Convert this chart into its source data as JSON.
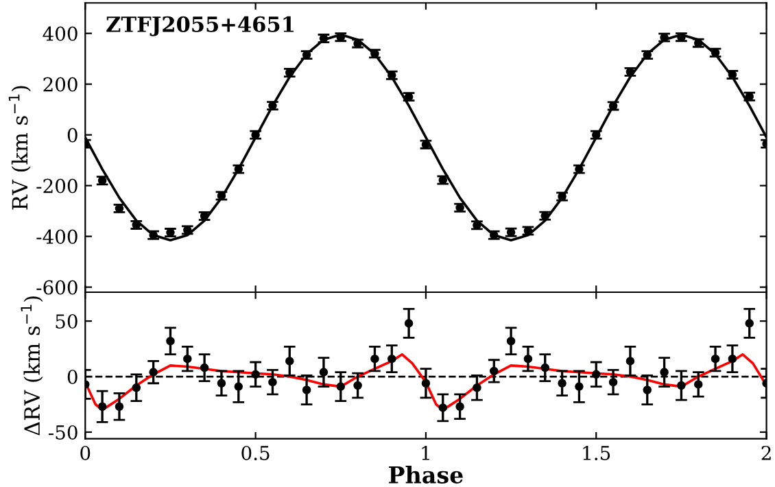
{
  "chart_data": [
    {
      "type": "scatter",
      "ylabel": "RV (km s$^{−1}$)",
      "annotations": [
        "ZTFJ2055+4651"
      ],
      "xlim": [
        0,
        2
      ],
      "xticks": [
        {
          "value": 0,
          "label": null
        },
        {
          "value": 0.5,
          "label": null
        },
        {
          "value": 1,
          "label": null
        },
        {
          "value": 1.5,
          "label": null
        },
        {
          "value": 2,
          "label": null
        }
      ],
      "ylim": [
        -620,
        520
      ],
      "yticks": [
        -600,
        -400,
        -200,
        0,
        200,
        400
      ],
      "tick_labels": "y",
      "grid": false,
      "legend": false,
      "series": [
        {
          "type": "line",
          "color": "#000000",
          "marker": "none",
          "line_style": "solid",
          "x": [
            0,
            0.05,
            0.1,
            0.15,
            0.2,
            0.25,
            0.3,
            0.35,
            0.4,
            0.45,
            0.5,
            0.55,
            0.6,
            0.65,
            0.7,
            0.75,
            0.8,
            0.85,
            0.9,
            0.95,
            1,
            1.05,
            1.1,
            1.15,
            1.2,
            1.25,
            1.3,
            1.35,
            1.4,
            1.45,
            1.5,
            1.55,
            1.6,
            1.65,
            1.7,
            1.75,
            1.8,
            1.85,
            1.9,
            1.95,
            2
          ],
          "values": [
            -10,
            -135,
            -248,
            -338,
            -395,
            -415,
            -395,
            -338,
            -248,
            -135,
            -10,
            115,
            228,
            318,
            375,
            395,
            375,
            318,
            228,
            115,
            -10,
            -135,
            -248,
            -338,
            -395,
            -415,
            -395,
            -338,
            -248,
            -135,
            -10,
            115,
            228,
            318,
            375,
            395,
            375,
            318,
            228,
            115,
            -10
          ]
        },
        {
          "color": "#000000",
          "marker": "circle",
          "x": [
            0,
            0.05,
            0.1,
            0.15,
            0.2,
            0.25,
            0.3,
            0.35,
            0.4,
            0.45,
            0.5,
            0.55,
            0.6,
            0.65,
            0.7,
            0.75,
            0.8,
            0.85,
            0.9,
            0.95,
            1,
            1.05,
            1.1,
            1.15,
            1.2,
            1.25,
            1.3,
            1.35,
            1.4,
            1.45,
            1.5,
            1.55,
            1.6,
            1.65,
            1.7,
            1.75,
            1.8,
            1.85,
            1.9,
            1.95,
            2
          ],
          "values": [
            -35,
            -180,
            -290,
            -355,
            -395,
            -385,
            -375,
            -320,
            -240,
            -135,
            0,
            115,
            245,
            315,
            380,
            385,
            360,
            320,
            235,
            150,
            -38,
            -178,
            -287,
            -356,
            -395,
            -384,
            -378,
            -319,
            -243,
            -135,
            0,
            114,
            248,
            315,
            384,
            385,
            362,
            324,
            237,
            151,
            -35
          ],
          "errors": [
            15,
            15,
            15,
            15,
            15,
            15,
            15,
            15,
            15,
            15,
            15,
            15,
            15,
            15,
            15,
            15,
            15,
            15,
            15,
            15,
            15,
            15,
            15,
            15,
            15,
            15,
            15,
            15,
            15,
            15,
            15,
            15,
            15,
            15,
            15,
            15,
            15,
            15,
            15,
            15,
            15
          ]
        }
      ]
    },
    {
      "type": "scatter",
      "xlabel": "Phase",
      "ylabel": "ΔRV (km s$^{−1}$)",
      "xlim": [
        0,
        2
      ],
      "xticks": [
        0,
        0.5,
        1,
        1.5,
        2
      ],
      "ylim": [
        -56,
        76
      ],
      "yticks": [
        -50,
        0,
        50
      ],
      "grid": false,
      "legend": false,
      "ref_lines": [
        {
          "axis": "y",
          "value": 0,
          "label": null,
          "color": "#000000",
          "line_style": "dashed"
        }
      ],
      "series": [
        {
          "type": "line",
          "color": "#ff0000",
          "marker": "none",
          "line_style": "solid",
          "x": [
            0,
            0.03,
            0.05,
            0.1,
            0.15,
            0.2,
            0.25,
            0.3,
            0.4,
            0.5,
            0.55,
            0.6,
            0.65,
            0.7,
            0.75,
            0.8,
            0.85,
            0.9,
            0.93,
            0.96,
            1,
            1.03,
            1.05,
            1.1,
            1.15,
            1.2,
            1.25,
            1.3,
            1.4,
            1.5,
            1.55,
            1.6,
            1.65,
            1.7,
            1.75,
            1.8,
            1.85,
            1.9,
            1.93,
            1.96,
            2
          ],
          "values": [
            -5,
            -25,
            -30,
            -20,
            -8,
            2,
            10,
            9,
            5,
            3,
            2,
            0,
            -3,
            -7,
            -9,
            0,
            7,
            14,
            20,
            12,
            -5,
            -25,
            -30,
            -20,
            -8,
            2,
            10,
            9,
            5,
            3,
            2,
            0,
            -3,
            -7,
            -9,
            0,
            7,
            14,
            20,
            12,
            -8
          ]
        },
        {
          "color": "#000000",
          "marker": "circle",
          "x": [
            0,
            0.05,
            0.1,
            0.15,
            0.2,
            0.25,
            0.3,
            0.35,
            0.4,
            0.45,
            0.5,
            0.55,
            0.6,
            0.65,
            0.7,
            0.75,
            0.8,
            0.85,
            0.9,
            0.95,
            1,
            1.05,
            1.1,
            1.15,
            1.2,
            1.25,
            1.3,
            1.35,
            1.4,
            1.45,
            1.5,
            1.55,
            1.6,
            1.65,
            1.7,
            1.75,
            1.8,
            1.85,
            1.9,
            1.95,
            2
          ],
          "values": [
            -7,
            -27,
            -27,
            -10,
            4,
            32,
            16,
            8,
            -6,
            -9,
            2,
            -5,
            14,
            -12,
            4,
            -9,
            -8,
            16,
            16,
            48,
            -6,
            -28,
            -27,
            -10,
            5,
            32,
            16,
            8,
            -6,
            -9,
            2,
            -5,
            14,
            -12,
            4,
            -8,
            -7,
            16,
            16,
            48,
            -6
          ],
          "errors": [
            13,
            14,
            12,
            12,
            10,
            12,
            11,
            12,
            11,
            14,
            11,
            11,
            13,
            13,
            13,
            13,
            11,
            11,
            12,
            13,
            13,
            12,
            11,
            11,
            10,
            12,
            11,
            12,
            11,
            14,
            11,
            11,
            13,
            13,
            13,
            13,
            11,
            11,
            12,
            13,
            13
          ]
        }
      ]
    }
  ]
}
